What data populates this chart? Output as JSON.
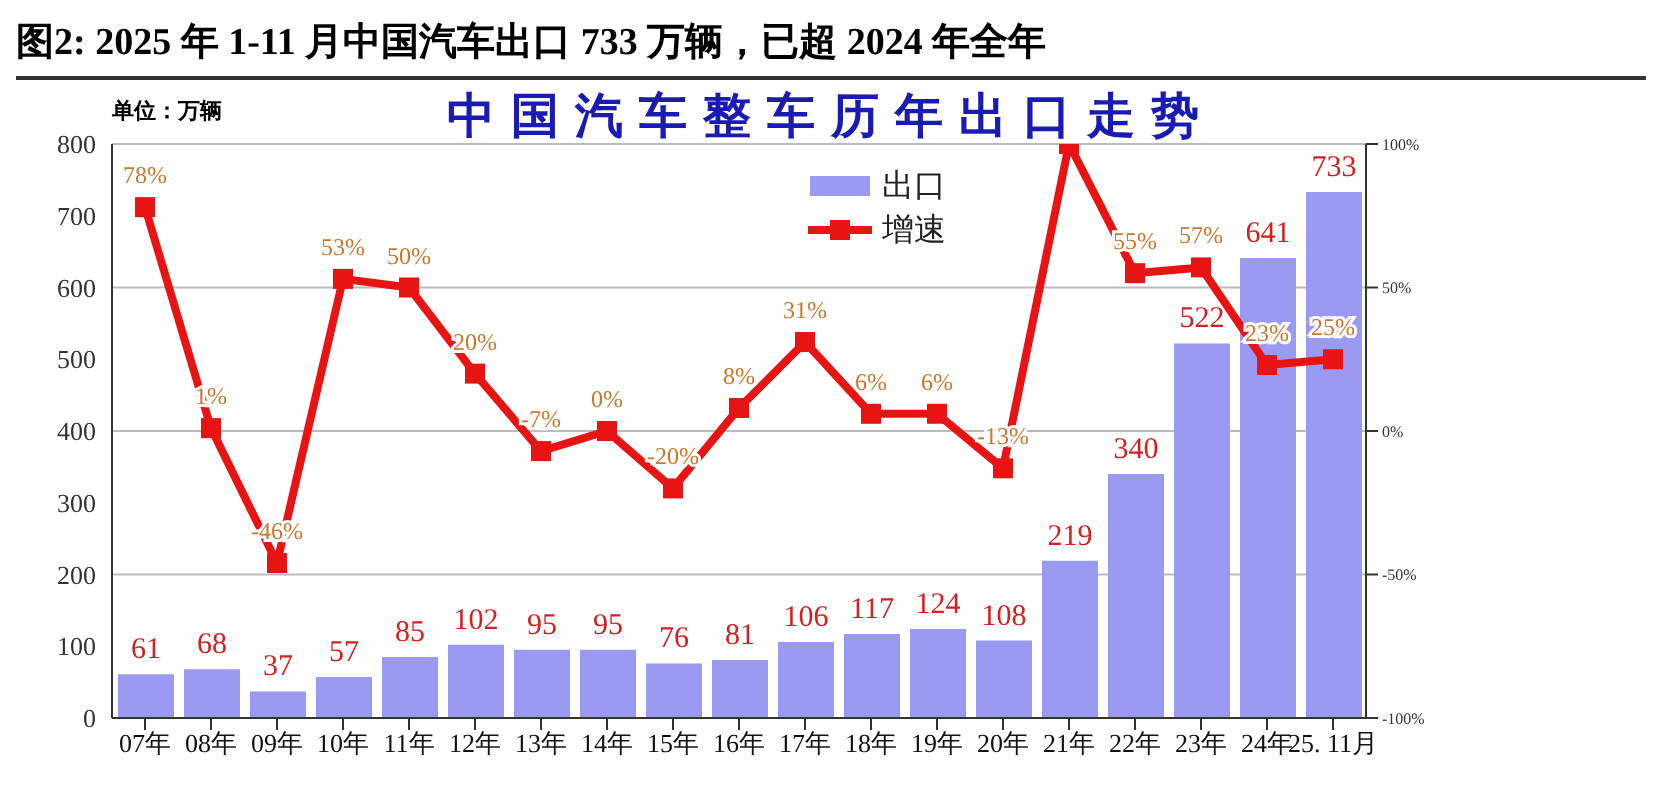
{
  "chart_data": {
    "type": "bar",
    "title": "图2:  2025 年 1-11 月中国汽车出口 733 万辆，已超 2024 年全年",
    "subtitle": "中国汽车整车历年出口走势",
    "ylabel": "单位：万辆",
    "categories": [
      "07年",
      "08年",
      "09年",
      "10年",
      "11年",
      "12年",
      "13年",
      "14年",
      "15年",
      "16年",
      "17年",
      "18年",
      "19年",
      "20年",
      "21年",
      "22年",
      "23年",
      "24年",
      "25. 11月"
    ],
    "series": [
      {
        "name": "出口",
        "color": "#9a9af2",
        "values": [
          61,
          68,
          37,
          57,
          85,
          102,
          95,
          95,
          76,
          81,
          106,
          117,
          124,
          108,
          219,
          340,
          522,
          641,
          733
        ],
        "value_labels": [
          "61",
          "68",
          "37",
          "57",
          "85",
          "102",
          "95",
          "95",
          "76",
          "81",
          "106",
          "117",
          "124",
          "108",
          "219",
          "340",
          "522",
          "641",
          "733"
        ]
      },
      {
        "name": "增速",
        "type": "line",
        "axis": "y2",
        "color": "#e81414",
        "marker": "square",
        "values": [
          78,
          1,
          -46,
          53,
          50,
          20,
          -7,
          0,
          -20,
          8,
          31,
          6,
          6,
          -13,
          100,
          55,
          57,
          23,
          25
        ],
        "value_labels": [
          "78%",
          "1%",
          "-46%",
          "53%",
          "50%",
          "20%",
          "-7%",
          "0%",
          "-20%",
          "8%",
          "31%",
          "6%",
          "6%",
          "-13%",
          null,
          "55%",
          "57%",
          "23%",
          "25%"
        ]
      }
    ],
    "ylim": [
      0,
      800
    ],
    "yticks": [
      0,
      100,
      200,
      300,
      400,
      500,
      600,
      700,
      800
    ],
    "y2lim": [
      -100,
      100
    ],
    "y2ticks": [
      {
        "value": -100,
        "label": "-100%"
      },
      {
        "value": -50,
        "label": "-50%"
      },
      {
        "value": 0,
        "label": "0%"
      },
      {
        "value": 50,
        "label": "50%"
      },
      {
        "value": 100,
        "label": "100%"
      }
    ],
    "grid": "y",
    "legend": "top right"
  }
}
